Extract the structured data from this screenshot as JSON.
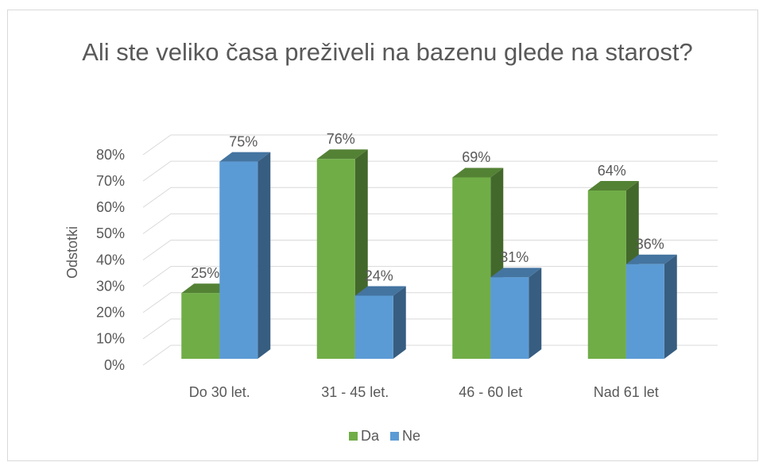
{
  "chart_data": {
    "type": "bar3d",
    "title": "Ali ste veliko časa preživeli na bazenu glede na starost?",
    "y_label": "Odstotki",
    "categories": [
      "Do 30 let.",
      "31 - 45 let.",
      "46 - 60 let",
      "Nad 61 let"
    ],
    "series": [
      {
        "name": "Da",
        "color": "#70ad47",
        "values": [
          25,
          76,
          69,
          64
        ],
        "value_labels": [
          "25%",
          "76%",
          "69%",
          "64%"
        ]
      },
      {
        "name": "Ne",
        "color": "#5b9bd5",
        "values": [
          75,
          24,
          31,
          36
        ],
        "value_labels": [
          "75%",
          "24%",
          "31%",
          "36%"
        ]
      }
    ],
    "ylim": [
      0,
      80
    ],
    "yticks": [
      {
        "value": 0,
        "label": "0%"
      },
      {
        "value": 10,
        "label": "10%"
      },
      {
        "value": 20,
        "label": "20%"
      },
      {
        "value": 30,
        "label": "30%"
      },
      {
        "value": 40,
        "label": "40%"
      },
      {
        "value": 50,
        "label": "50%"
      },
      {
        "value": 60,
        "label": "60%"
      },
      {
        "value": 70,
        "label": "70%"
      },
      {
        "value": 80,
        "label": "80%"
      }
    ],
    "grid": true,
    "legend": "bottom"
  }
}
